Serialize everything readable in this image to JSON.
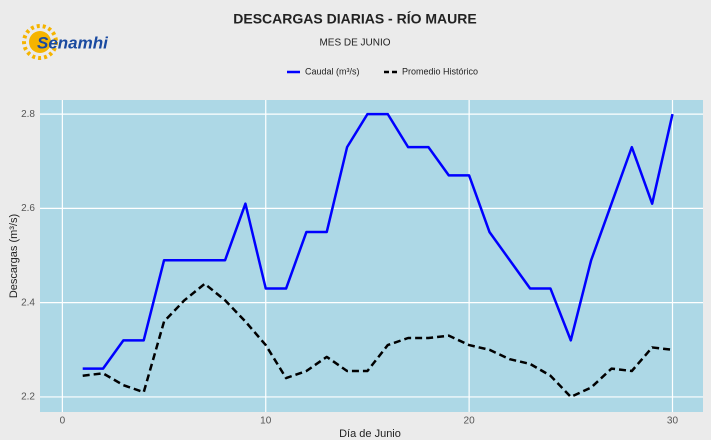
{
  "logo": "Senamhi",
  "chart_data": {
    "type": "line",
    "title": "DESCARGAS DIARIAS - RÍO MAURE",
    "subtitle": "MES DE JUNIO",
    "xlabel": "Día de Junio",
    "ylabel": "Descargas (m³/s)",
    "x": [
      1,
      2,
      3,
      4,
      5,
      6,
      7,
      8,
      9,
      10,
      11,
      12,
      13,
      14,
      15,
      16,
      17,
      18,
      19,
      20,
      21,
      22,
      23,
      24,
      25,
      26,
      27,
      28,
      29,
      30
    ],
    "series": [
      {
        "name": "Caudal (m³/s)",
        "color": "#0000ff",
        "dash": false,
        "values": [
          2.26,
          2.26,
          2.32,
          2.32,
          2.49,
          2.49,
          2.49,
          2.49,
          2.61,
          2.43,
          2.43,
          2.55,
          2.55,
          2.73,
          2.8,
          2.8,
          2.73,
          2.73,
          2.67,
          2.67,
          2.55,
          2.49,
          2.43,
          2.43,
          2.32,
          2.49,
          2.61,
          2.73,
          2.61,
          2.8
        ]
      },
      {
        "name": "Promedio Histórico",
        "color": "#000000",
        "dash": true,
        "values": [
          2.245,
          2.25,
          2.225,
          2.21,
          2.36,
          2.405,
          2.44,
          2.405,
          2.36,
          2.31,
          2.24,
          2.255,
          2.285,
          2.255,
          2.255,
          2.31,
          2.325,
          2.325,
          2.33,
          2.31,
          2.3,
          2.28,
          2.27,
          2.245,
          2.2,
          2.22,
          2.26,
          2.255,
          2.305,
          2.3
        ]
      }
    ],
    "xlim": [
      -1.1,
      31.5
    ],
    "xticks": [
      0,
      10,
      20,
      30
    ],
    "ylim": [
      2.168,
      2.83
    ],
    "yticks": [
      2.2,
      2.4,
      2.6,
      2.8
    ],
    "grid": true,
    "legend": "top"
  }
}
